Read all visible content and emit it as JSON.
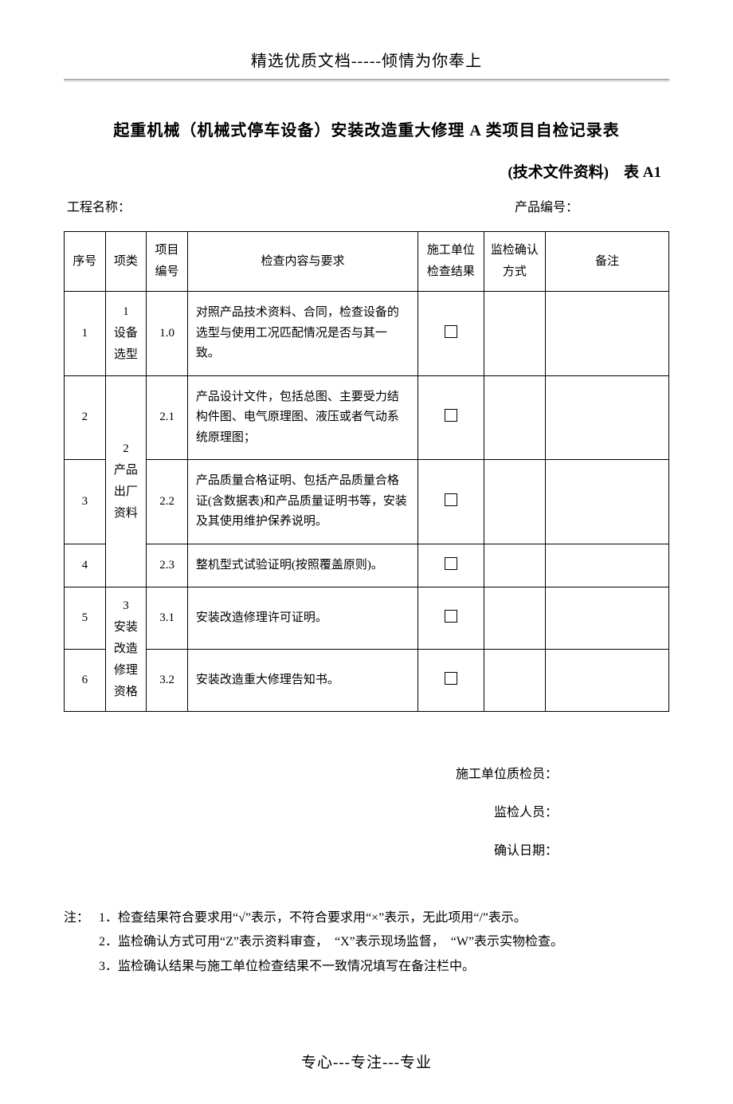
{
  "header_text": "精选优质文档-----倾情为你奉上",
  "title": "起重机械（机械式停车设备）安装改造重大修理 A 类项目自检记录表",
  "subtitle": "(技术文件资料)　表 A1",
  "meta": {
    "project_label": "工程名称：",
    "product_label": "产品编号："
  },
  "table": {
    "headers": {
      "seq": "序号",
      "category": "项类",
      "item_no": "项目编号",
      "content": "检查内容与要求",
      "result": "施工单位检查结果",
      "confirm": "监检确认方式",
      "remark": "备注"
    },
    "rows": [
      {
        "seq": "1",
        "category": "1\n设备\n选型",
        "cat_rowspan": 1,
        "item_no": "1.0",
        "content": "对照产品技术资料、合同，检查设备的选型与使用工况匹配情况是否与其一致。"
      },
      {
        "seq": "2",
        "category": "2\n产品\n出厂\n资料",
        "cat_rowspan": 3,
        "item_no": "2.1",
        "content": "产品设计文件，包括总图、主要受力结构件图、电气原理图、液压或者气动系统原理图；"
      },
      {
        "seq": "3",
        "item_no": "2.2",
        "content": "产品质量合格证明、包括产品质量合格证(含数据表)和产品质量证明书等，安装及其使用维护保养说明。"
      },
      {
        "seq": "4",
        "item_no": "2.3",
        "content": "整机型式试验证明(按照覆盖原则)。"
      },
      {
        "seq": "5",
        "category": "3\n安装\n改造\n修理\n资格",
        "cat_rowspan": 2,
        "item_no": "3.1",
        "content": "安装改造修理许可证明。"
      },
      {
        "seq": "6",
        "item_no": "3.2",
        "content": "安装改造重大修理告知书。"
      }
    ]
  },
  "signatures": {
    "inspector": "施工单位质检员：",
    "supervisor": "监检人员：",
    "date": "确认日期："
  },
  "notes": {
    "label": "注：",
    "lines": [
      "1．检查结果符合要求用“√”表示，不符合要求用“×”表示，无此项用“/”表示。",
      "2．监检确认方式可用“Z”表示资料审查，　“X”表示现场监督，　“W”表示实物检查。",
      "3．监检确认结果与施工单位检查结果不一致情况填写在备注栏中。"
    ]
  },
  "footer_text": "专心---专注---专业"
}
